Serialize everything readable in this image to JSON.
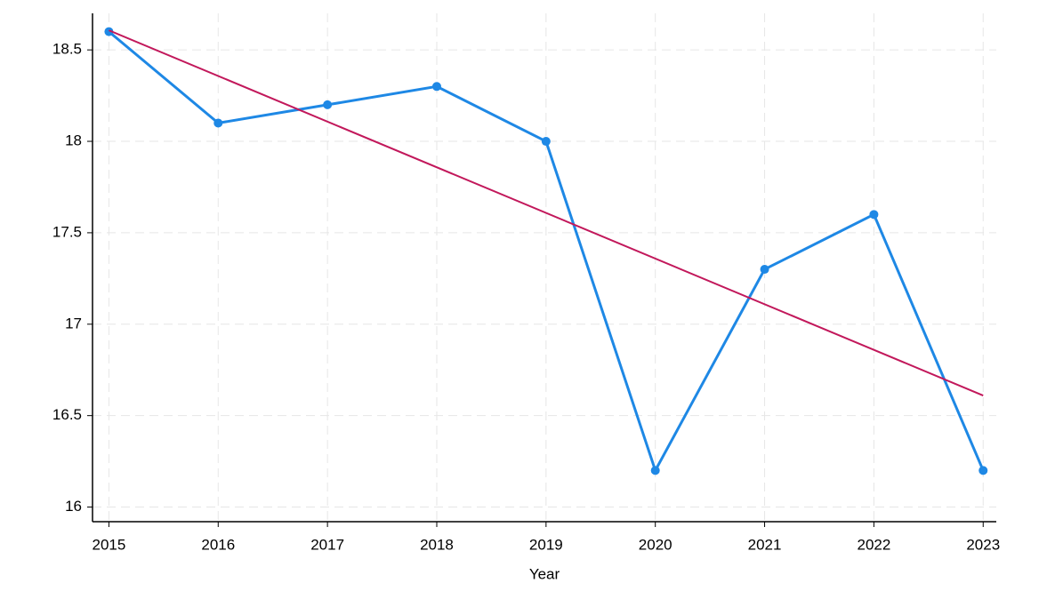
{
  "chart_data": {
    "type": "line",
    "x_label": "Year",
    "x": [
      2015,
      2016,
      2017,
      2018,
      2019,
      2020,
      2021,
      2022,
      2023
    ],
    "series": [
      {
        "color": "#1e88e5",
        "values": [
          18.6,
          18.1,
          18.2,
          18.3,
          18.0,
          16.2,
          17.3,
          17.6,
          16.2
        ],
        "markers": true
      },
      {
        "color": "#c2185b",
        "x": [
          2015,
          2023
        ],
        "values": [
          18.607,
          16.61
        ],
        "markers": false
      }
    ],
    "xlim": [
      2014.85,
      2023.12
    ],
    "xticks": [
      2015,
      2016,
      2017,
      2018,
      2019,
      2020,
      2021,
      2022,
      2023
    ],
    "ylim": [
      15.92,
      18.7
    ],
    "yticks": [
      16,
      16.5,
      17,
      17.5,
      18,
      18.5
    ],
    "grid": true
  }
}
